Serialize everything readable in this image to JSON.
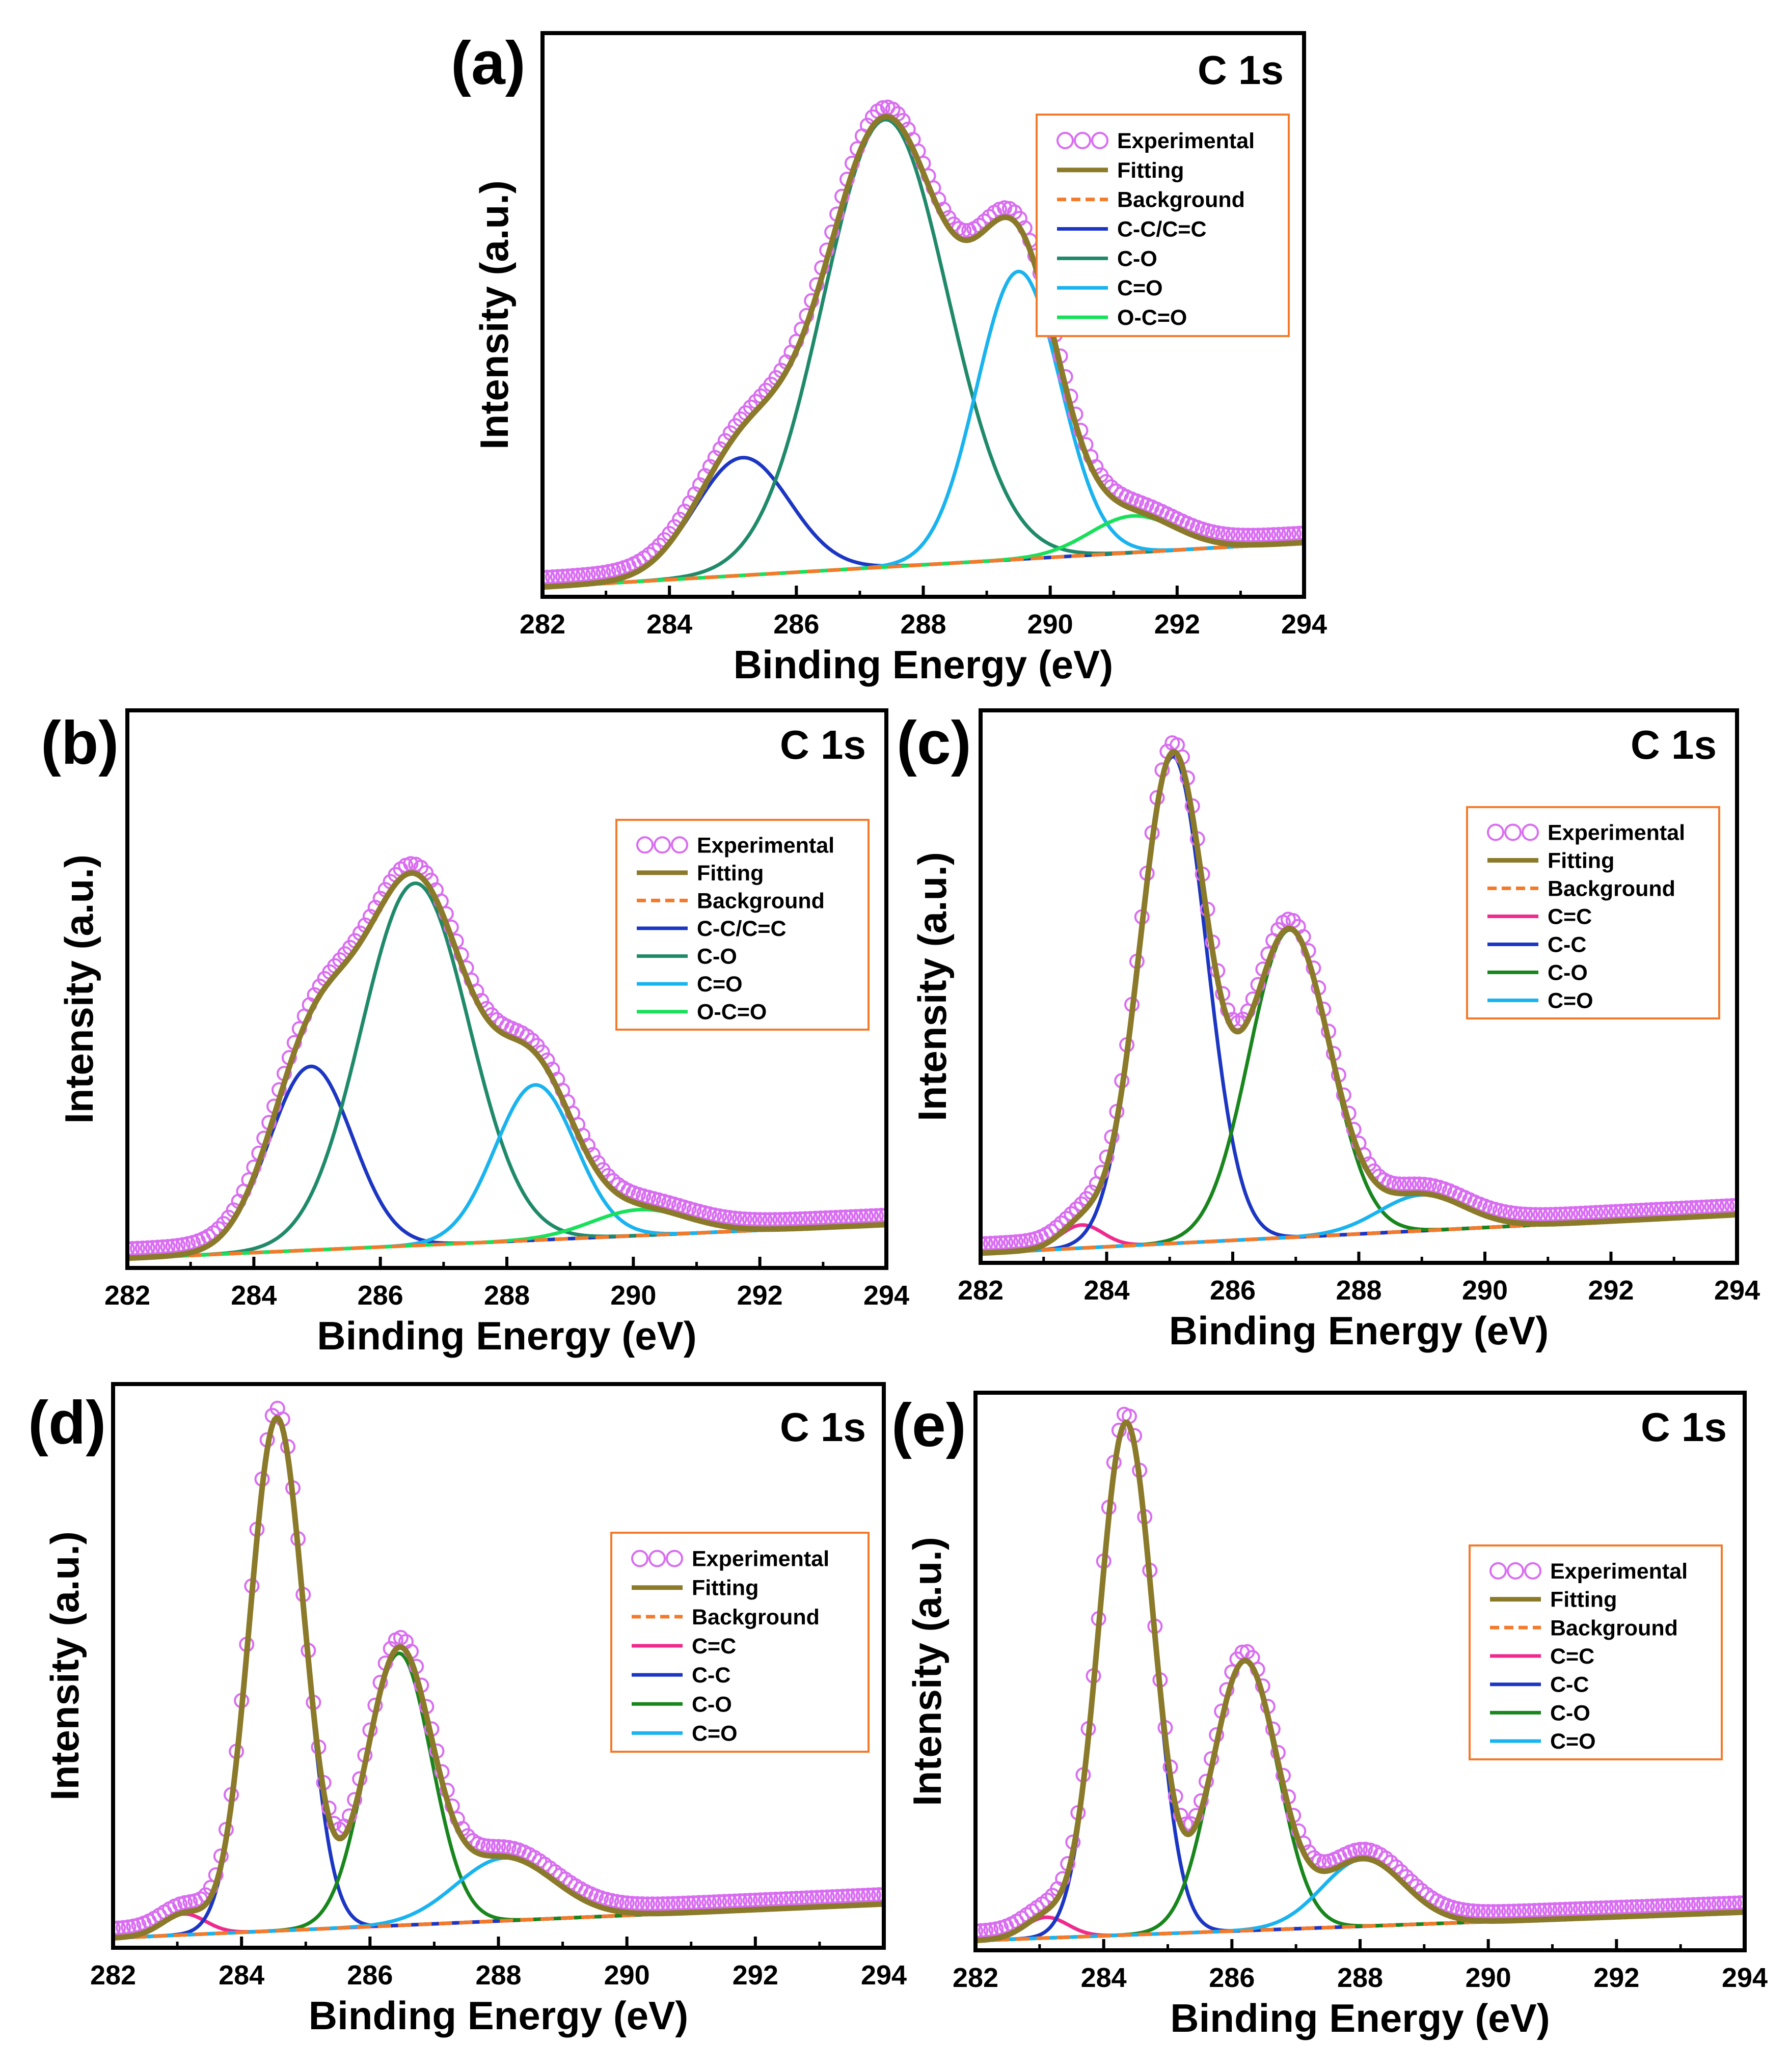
{
  "figure": {
    "colors": {
      "experimental": "#d96cf2",
      "fitting": "#8a7a2a",
      "background": "#f47a2a",
      "cc_combined": "#1c36c4",
      "co_teal": "#1f8a6a",
      "co_green": "#18861c",
      "c_double_o": "#19b3ef",
      "o_c_double_o": "#19e05a",
      "c_double_c": "#ef2a8c",
      "legend_border": "#f47a2a",
      "axis": "#000000"
    }
  },
  "chart_data": [
    {
      "type": "line",
      "panel_label": "(a)",
      "corner_label": "C 1s",
      "xlabel": "Binding Energy (eV)",
      "ylabel": "Intensity (a.u.)",
      "xlim": [
        282,
        294
      ],
      "ylim": [
        0,
        1.05
      ],
      "xticks": [
        "282",
        "284",
        "286",
        "288",
        "290",
        "292",
        "294"
      ],
      "legend": [
        "Experimental",
        "Fitting",
        "Background",
        "C-C/C=C",
        "C-O",
        "C=O",
        "O-C=O"
      ],
      "background": {
        "x": [
          282,
          294
        ],
        "y": [
          0.005,
          0.09
        ]
      },
      "components": [
        {
          "name": "C-C/C=C",
          "center": 285.15,
          "height": 0.225,
          "fwhm": 1.75,
          "color_key": "cc_combined"
        },
        {
          "name": "C-O",
          "center": 287.4,
          "height": 0.855,
          "fwhm": 2.3,
          "color_key": "co_teal"
        },
        {
          "name": "C=O",
          "center": 289.5,
          "height": 0.55,
          "fwhm": 1.55,
          "color_key": "c_double_o"
        },
        {
          "name": "O-C=O",
          "center": 291.3,
          "height": 0.07,
          "fwhm": 1.6,
          "color_key": "o_c_double_o"
        }
      ]
    },
    {
      "type": "line",
      "panel_label": "(b)",
      "corner_label": "C 1s",
      "xlabel": "Binding Energy (eV)",
      "ylabel": "Intensity (a.u.)",
      "xlim": [
        282,
        294
      ],
      "ylim": [
        0,
        1.05
      ],
      "xticks": [
        "282",
        "284",
        "286",
        "288",
        "290",
        "292",
        "294"
      ],
      "legend": [
        "Experimental",
        "Fitting",
        "Background",
        "C-C/C=C",
        "C-O",
        "C=O",
        "O-C=O"
      ],
      "background": {
        "x": [
          282,
          294
        ],
        "y": [
          0.005,
          0.07
        ]
      },
      "components": [
        {
          "name": "C-C/C=C",
          "center": 284.9,
          "height": 0.355,
          "fwhm": 1.55,
          "color_key": "cc_combined"
        },
        {
          "name": "C-O",
          "center": 286.55,
          "height": 0.7,
          "fwhm": 2.0,
          "color_key": "co_teal"
        },
        {
          "name": "C=O",
          "center": 288.45,
          "height": 0.3,
          "fwhm": 1.5,
          "color_key": "c_double_o"
        },
        {
          "name": "O-C=O",
          "center": 290.1,
          "height": 0.05,
          "fwhm": 1.8,
          "color_key": "o_c_double_o"
        }
      ]
    },
    {
      "type": "line",
      "panel_label": "(c)",
      "corner_label": "C 1s",
      "xlabel": "Binding Energy (eV)",
      "ylabel": "Intensity (a.u.)",
      "xlim": [
        282,
        294
      ],
      "ylim": [
        0,
        1.05
      ],
      "xticks": [
        "282",
        "284",
        "286",
        "288",
        "290",
        "292",
        "294"
      ],
      "legend": [
        "Experimental",
        "Fitting",
        "Background",
        "C=C",
        "C-C",
        "C-O",
        "C=O"
      ],
      "background": {
        "x": [
          282,
          294
        ],
        "y": [
          0.005,
          0.08
        ]
      },
      "components": [
        {
          "name": "C=C",
          "center": 283.6,
          "height": 0.045,
          "fwhm": 0.8,
          "color_key": "c_double_c"
        },
        {
          "name": "C-C",
          "center": 285.05,
          "height": 0.95,
          "fwhm": 1.25,
          "color_key": "cc_combined"
        },
        {
          "name": "C-O",
          "center": 286.9,
          "height": 0.6,
          "fwhm": 1.5,
          "color_key": "co_green"
        },
        {
          "name": "C=O",
          "center": 289.0,
          "height": 0.07,
          "fwhm": 1.6,
          "color_key": "c_double_o"
        }
      ]
    },
    {
      "type": "line",
      "panel_label": "(d)",
      "corner_label": "C 1s",
      "xlabel": "Binding Energy (eV)",
      "ylabel": "Intensity (a.u.)",
      "xlim": [
        282,
        294
      ],
      "ylim": [
        0,
        1.05
      ],
      "xticks": [
        "282",
        "284",
        "286",
        "288",
        "290",
        "292",
        "294"
      ],
      "legend": [
        "Experimental",
        "Fitting",
        "Background",
        "C=C",
        "C-C",
        "C-O",
        "C=O"
      ],
      "background": {
        "x": [
          282,
          294
        ],
        "y": [
          0.005,
          0.07
        ]
      },
      "components": [
        {
          "name": "C=C",
          "center": 283.1,
          "height": 0.04,
          "fwhm": 0.8,
          "color_key": "c_double_c"
        },
        {
          "name": "C-C",
          "center": 284.55,
          "height": 0.98,
          "fwhm": 1.0,
          "color_key": "cc_combined"
        },
        {
          "name": "C-O",
          "center": 286.45,
          "height": 0.52,
          "fwhm": 1.2,
          "color_key": "co_green"
        },
        {
          "name": "C=O",
          "center": 288.1,
          "height": 0.12,
          "fwhm": 1.8,
          "color_key": "c_double_o"
        }
      ]
    },
    {
      "type": "line",
      "panel_label": "(e)",
      "corner_label": "C 1s",
      "xlabel": "Binding Energy (eV)",
      "ylabel": "Intensity (a.u.)",
      "xlim": [
        282,
        294
      ],
      "ylim": [
        0,
        1.05
      ],
      "xticks": [
        "282",
        "284",
        "286",
        "288",
        "290",
        "292",
        "294"
      ],
      "legend": [
        "Experimental",
        "Fitting",
        "Background",
        "C=C",
        "C-C",
        "C-O",
        "C=O"
      ],
      "background": {
        "x": [
          282,
          294
        ],
        "y": [
          0.005,
          0.06
        ]
      },
      "components": [
        {
          "name": "C=C",
          "center": 283.1,
          "height": 0.04,
          "fwhm": 0.8,
          "color_key": "c_double_c"
        },
        {
          "name": "C-C",
          "center": 284.35,
          "height": 0.99,
          "fwhm": 1.0,
          "color_key": "cc_combined"
        },
        {
          "name": "C-O",
          "center": 286.2,
          "height": 0.52,
          "fwhm": 1.2,
          "color_key": "co_green"
        },
        {
          "name": "C=O",
          "center": 288.05,
          "height": 0.13,
          "fwhm": 1.5,
          "color_key": "c_double_o"
        }
      ]
    }
  ]
}
